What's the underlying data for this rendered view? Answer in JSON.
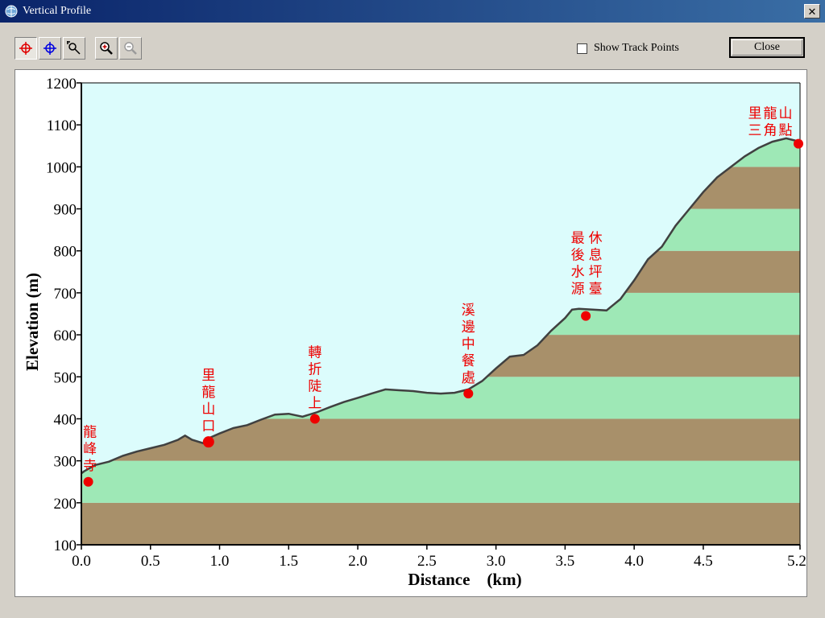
{
  "window": {
    "title": "Vertical Profile"
  },
  "toolbar": {
    "buttons": [
      {
        "name": "select-point-red-icon",
        "pressed": true
      },
      {
        "name": "select-point-blue-icon",
        "pressed": false
      },
      {
        "name": "zoom-region-icon",
        "pressed": false
      },
      {
        "name": "zoom-in-icon",
        "pressed": false
      },
      {
        "name": "zoom-out-icon",
        "pressed": false
      }
    ]
  },
  "controls": {
    "show_track_points_label": "Show Track Points",
    "show_track_points_checked": false,
    "close_label": "Close"
  },
  "colors": {
    "sky": "#dcfcfc",
    "band_green": "#9ee8b6",
    "band_brown": "#a8906a",
    "line": "#404040",
    "waypoint": "#ee0000",
    "label_text": "#ee0000"
  },
  "chart_data": {
    "type": "area",
    "xlabel": "Distance    (km)",
    "ylabel": "Elevation (m)",
    "xlim": [
      0,
      5.2
    ],
    "ylim": [
      100,
      1200
    ],
    "x_ticks": [
      "0.0",
      "0.5",
      "1.0",
      "1.5",
      "2.0",
      "2.5",
      "3.0",
      "3.5",
      "4.0",
      "4.5",
      "5.2"
    ],
    "x_tick_values": [
      0,
      0.5,
      1.0,
      1.5,
      2.0,
      2.5,
      3.0,
      3.5,
      4.0,
      4.5,
      5.2
    ],
    "y_ticks": [
      "100",
      "200",
      "300",
      "400",
      "500",
      "600",
      "700",
      "800",
      "900",
      "1000",
      "1100",
      "1200"
    ],
    "y_tick_values": [
      100,
      200,
      300,
      400,
      500,
      600,
      700,
      800,
      900,
      1000,
      1100,
      1200
    ],
    "grid": false,
    "profile": {
      "x": [
        0.0,
        0.02,
        0.1,
        0.2,
        0.3,
        0.4,
        0.5,
        0.6,
        0.7,
        0.75,
        0.8,
        0.88,
        0.93,
        1.0,
        1.1,
        1.2,
        1.3,
        1.4,
        1.5,
        1.6,
        1.7,
        1.8,
        1.9,
        2.0,
        2.1,
        2.2,
        2.3,
        2.4,
        2.5,
        2.6,
        2.7,
        2.8,
        2.9,
        3.0,
        3.1,
        3.2,
        3.3,
        3.4,
        3.5,
        3.55,
        3.6,
        3.6,
        3.7,
        3.8,
        3.9,
        4.0,
        4.1,
        4.2,
        4.3,
        4.4,
        4.5,
        4.6,
        4.7,
        4.8,
        4.9,
        5.0,
        5.1,
        5.2
      ],
      "y": [
        270,
        275,
        290,
        298,
        312,
        322,
        330,
        338,
        350,
        360,
        350,
        342,
        355,
        365,
        378,
        385,
        398,
        410,
        412,
        405,
        415,
        428,
        440,
        450,
        460,
        470,
        468,
        466,
        462,
        460,
        462,
        470,
        490,
        520,
        548,
        552,
        575,
        610,
        640,
        660,
        662,
        662,
        660,
        658,
        685,
        730,
        780,
        810,
        860,
        900,
        940,
        975,
        1000,
        1025,
        1045,
        1060,
        1068,
        1060
      ]
    },
    "waypoints": [
      {
        "x": 0.05,
        "y": 250,
        "label": [
          "龍",
          "峰",
          "寺"
        ]
      },
      {
        "x": 0.92,
        "y": 345,
        "label": [
          "里",
          "龍",
          "山",
          "口"
        ]
      },
      {
        "x": 1.69,
        "y": 400,
        "label": [
          "轉",
          "折",
          "陡",
          "上"
        ]
      },
      {
        "x": 2.8,
        "y": 460,
        "label": [
          "溪",
          "邊",
          "中",
          "餐",
          "處"
        ]
      },
      {
        "x": 3.65,
        "y": 645,
        "label_cols": [
          [
            "最",
            "後",
            "水",
            "源"
          ],
          [
            "休",
            "息",
            "坪",
            "臺"
          ]
        ]
      },
      {
        "x": 5.2,
        "y": 1055,
        "label_rows": [
          "里龍山",
          "三角點"
        ]
      }
    ]
  }
}
